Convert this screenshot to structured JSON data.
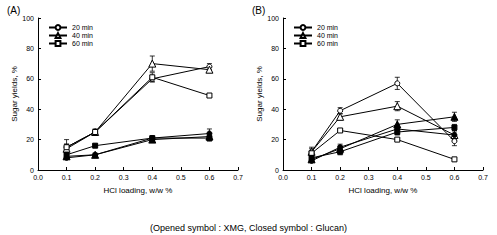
{
  "caption": "(Opened symbol : XMG, Closed symbol : Glucan)",
  "chart_data": [
    {
      "type": "line",
      "title": "(A)",
      "x_label": "HCl loading, w/w %",
      "y_label": "Sugar yields, %",
      "x": [
        0.1,
        0.2,
        0.4,
        0.6
      ],
      "xlim": [
        0,
        0.7
      ],
      "xticks": [
        {
          "value": 0,
          "label": "0.0"
        },
        0.1,
        0.2,
        0.3,
        0.4,
        0.5,
        0.6,
        0.7
      ],
      "ylim": [
        0,
        100
      ],
      "yticks": [
        0,
        20,
        40,
        60,
        80,
        100
      ],
      "grid": false,
      "legend": "upper left",
      "series": [
        {
          "name": "20 min",
          "color": "#000000",
          "marker": "circle-open",
          "line_style": "solid",
          "values": [
            15,
            25,
            60,
            68
          ],
          "errors": [
            5,
            2,
            2,
            2
          ]
        },
        {
          "name": "40 min",
          "color": "#000000",
          "marker": "triangle-open",
          "line_style": "solid",
          "values": [
            14,
            25,
            70,
            66
          ],
          "errors": [
            3,
            1,
            5,
            2
          ]
        },
        {
          "name": "60 min",
          "color": "#000000",
          "marker": "square-open",
          "line_style": "solid",
          "values": [
            15,
            25,
            61,
            49
          ],
          "errors": [
            2,
            1,
            3,
            1
          ]
        },
        {
          "name": "20 min",
          "color": "#000000",
          "marker": "circle",
          "line_style": "solid",
          "values": [
            8,
            10,
            21,
            24
          ],
          "errors": [
            1,
            1,
            1,
            3
          ]
        },
        {
          "name": "40 min",
          "color": "#000000",
          "marker": "triangle",
          "line_style": "solid",
          "values": [
            9,
            10,
            20,
            22
          ],
          "errors": [
            1,
            1,
            1,
            2
          ]
        },
        {
          "name": "60 min",
          "color": "#000000",
          "marker": "square",
          "line_style": "solid",
          "values": [
            10,
            16,
            21,
            21
          ],
          "errors": [
            1,
            1,
            1,
            2
          ]
        }
      ]
    },
    {
      "type": "line",
      "title": "(B)",
      "x_label": "HCl loading, w/w %",
      "y_label": "Sugar yields, %",
      "x": [
        0.1,
        0.2,
        0.4,
        0.6
      ],
      "xlim": [
        0,
        0.7
      ],
      "xticks": [
        {
          "value": 0,
          "label": "0.0"
        },
        0.1,
        0.2,
        0.3,
        0.4,
        0.5,
        0.6,
        0.7
      ],
      "ylim": [
        0,
        100
      ],
      "yticks": [
        0,
        20,
        40,
        60,
        80,
        100
      ],
      "grid": false,
      "legend": "upper left",
      "series": [
        {
          "name": "20 min",
          "color": "#000000",
          "marker": "circle-open",
          "line_style": "solid",
          "values": [
            12,
            39,
            57,
            19
          ],
          "errors": [
            3,
            2,
            4,
            3
          ]
        },
        {
          "name": "40 min",
          "color": "#000000",
          "marker": "triangle-open",
          "line_style": "solid",
          "values": [
            12,
            35,
            42,
            23
          ],
          "errors": [
            2,
            2,
            3,
            2
          ]
        },
        {
          "name": "60 min",
          "color": "#000000",
          "marker": "square-open",
          "line_style": "solid",
          "values": [
            11,
            26,
            20,
            7
          ],
          "errors": [
            1,
            1,
            1,
            1
          ]
        },
        {
          "name": "20 min",
          "color": "#000000",
          "marker": "circle",
          "line_style": "solid",
          "values": [
            6,
            15,
            27,
            23
          ],
          "errors": [
            1,
            2,
            3,
            3
          ]
        },
        {
          "name": "40 min",
          "color": "#000000",
          "marker": "triangle",
          "line_style": "solid",
          "values": [
            7,
            14,
            30,
            35
          ],
          "errors": [
            1,
            2,
            3,
            3
          ]
        },
        {
          "name": "60 min",
          "color": "#000000",
          "marker": "square",
          "line_style": "solid",
          "values": [
            8,
            12,
            25,
            28
          ],
          "errors": [
            1,
            2,
            2,
            2
          ]
        }
      ]
    }
  ]
}
